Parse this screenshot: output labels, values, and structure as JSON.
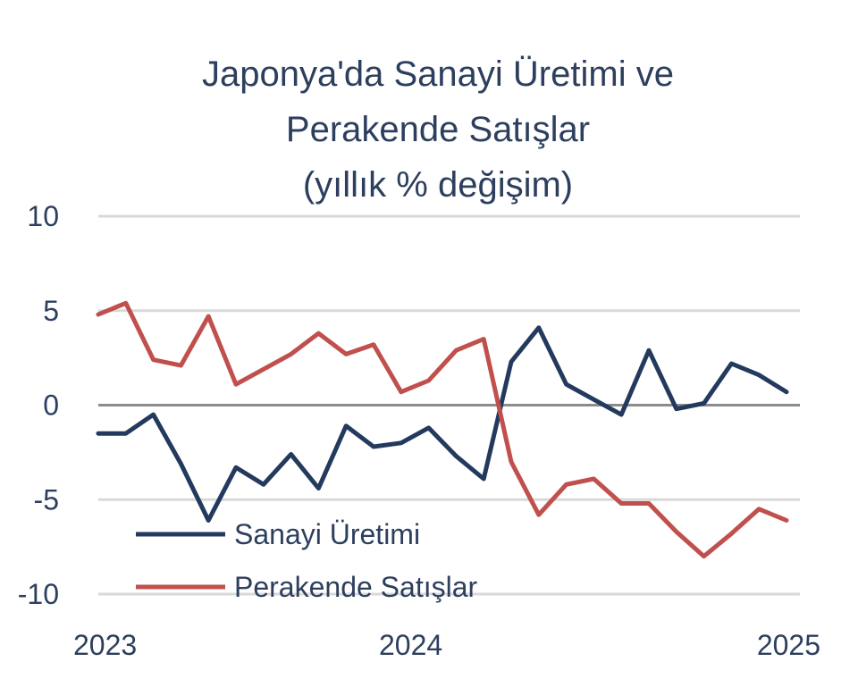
{
  "chart_data": {
    "type": "line",
    "title_lines": [
      "Japonya'da Sanayi Üretimi ve",
      "Perakende Satışlar",
      "(yıllık % değişim)"
    ],
    "xlabel": "",
    "ylabel": "",
    "ylim": [
      -10,
      10
    ],
    "yticks": [
      "10",
      "5",
      "0",
      "-5",
      "-10"
    ],
    "ytick_values": [
      10,
      5,
      0,
      -5,
      -10
    ],
    "xtick_labels": [
      "2023",
      "2024",
      "2025"
    ],
    "xtick_index": [
      0,
      12,
      24
    ],
    "grid": true,
    "legend_position": "bottom-left",
    "colors": {
      "Sanayi Üretimi": "#233a5e",
      "Perakende Satışlar": "#c0504d"
    },
    "series": [
      {
        "name": "Sanayi Üretimi",
        "values": [
          -1.5,
          -1.5,
          -0.5,
          -3.1,
          -6.1,
          -3.3,
          -4.2,
          -2.6,
          -4.4,
          -1.1,
          -2.2,
          -2.0,
          -1.2,
          -2.7,
          -3.9,
          2.3,
          4.1,
          1.1,
          0.3,
          -0.5,
          2.9,
          -0.2,
          0.1,
          2.2,
          1.6,
          0.7
        ]
      },
      {
        "name": "Perakende Satışlar",
        "values": [
          4.8,
          5.4,
          2.4,
          2.1,
          4.7,
          1.1,
          1.9,
          2.7,
          3.8,
          2.7,
          3.2,
          0.7,
          1.3,
          2.9,
          3.5,
          -3.0,
          -5.8,
          -4.2,
          -3.9,
          -5.2,
          -5.2,
          -6.7,
          -8.0,
          -6.8,
          -5.5,
          -6.1
        ]
      }
    ]
  }
}
